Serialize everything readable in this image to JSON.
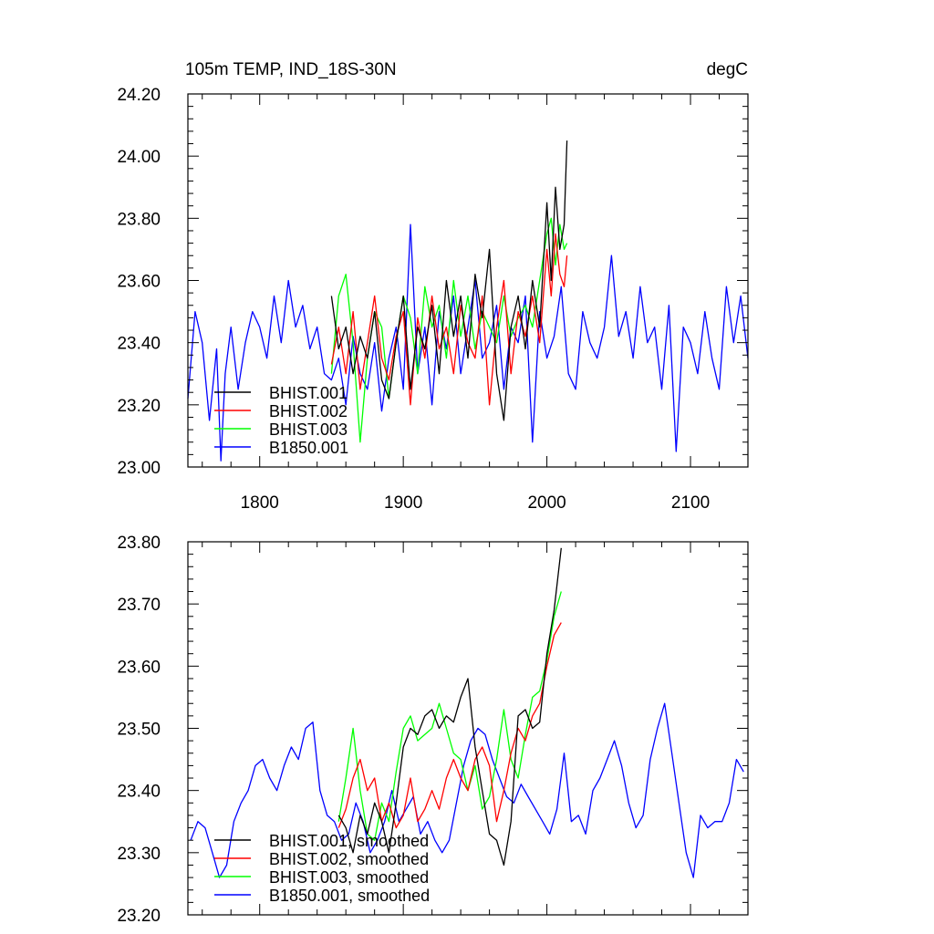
{
  "figure": {
    "title_left": "105m TEMP, IND_18S-30N",
    "title_right": "degC"
  },
  "chart_data": [
    {
      "type": "line",
      "panel": "raw",
      "xlim": [
        1750,
        2140
      ],
      "ylim": [
        23.0,
        24.2
      ],
      "xticks": [
        1800,
        1900,
        2000,
        2100
      ],
      "xtick_labels": [
        "1800",
        "1900",
        "2000",
        "2100"
      ],
      "yticks": [
        23.0,
        23.2,
        23.4,
        23.6,
        23.8,
        24.0,
        24.2
      ],
      "ytick_labels": [
        "23.00",
        "23.20",
        "23.40",
        "23.60",
        "23.80",
        "24.00",
        "24.20"
      ],
      "legend_position": "bottom-left",
      "series": [
        {
          "name": "BHIST.001",
          "color": "#000000",
          "x": [
            1850,
            1855,
            1860,
            1865,
            1870,
            1875,
            1880,
            1885,
            1890,
            1895,
            1900,
            1905,
            1910,
            1915,
            1920,
            1925,
            1930,
            1935,
            1940,
            1945,
            1950,
            1955,
            1960,
            1965,
            1970,
            1975,
            1980,
            1985,
            1990,
            1995,
            2000,
            2003,
            2006,
            2009,
            2012,
            2014
          ],
          "y": [
            23.55,
            23.38,
            23.45,
            23.3,
            23.42,
            23.35,
            23.5,
            23.28,
            23.22,
            23.4,
            23.55,
            23.25,
            23.45,
            23.38,
            23.52,
            23.3,
            23.6,
            23.42,
            23.55,
            23.35,
            23.62,
            23.48,
            23.7,
            23.3,
            23.15,
            23.45,
            23.55,
            23.38,
            23.6,
            23.45,
            23.85,
            23.6,
            23.9,
            23.7,
            23.78,
            24.05
          ]
        },
        {
          "name": "BHIST.002",
          "color": "#ff0000",
          "x": [
            1850,
            1855,
            1860,
            1865,
            1870,
            1875,
            1880,
            1885,
            1890,
            1895,
            1900,
            1905,
            1910,
            1915,
            1920,
            1925,
            1930,
            1935,
            1940,
            1945,
            1950,
            1955,
            1960,
            1965,
            1970,
            1975,
            1980,
            1985,
            1990,
            1995,
            2000,
            2003,
            2006,
            2009,
            2012,
            2014
          ],
          "y": [
            23.33,
            23.45,
            23.3,
            23.5,
            23.25,
            23.4,
            23.55,
            23.35,
            23.28,
            23.42,
            23.5,
            23.2,
            23.48,
            23.35,
            23.55,
            23.38,
            23.45,
            23.3,
            23.52,
            23.4,
            23.35,
            23.55,
            23.2,
            23.45,
            23.6,
            23.3,
            23.5,
            23.42,
            23.55,
            23.4,
            23.7,
            23.55,
            23.75,
            23.62,
            23.58,
            23.68
          ]
        },
        {
          "name": "BHIST.003",
          "color": "#00ff00",
          "x": [
            1850,
            1855,
            1860,
            1865,
            1870,
            1875,
            1880,
            1885,
            1890,
            1895,
            1900,
            1905,
            1910,
            1915,
            1920,
            1925,
            1930,
            1935,
            1940,
            1945,
            1950,
            1955,
            1960,
            1965,
            1970,
            1975,
            1980,
            1985,
            1990,
            1995,
            2000,
            2003,
            2006,
            2009,
            2012,
            2014
          ],
          "y": [
            23.3,
            23.55,
            23.62,
            23.4,
            23.08,
            23.35,
            23.5,
            23.45,
            23.22,
            23.4,
            23.55,
            23.48,
            23.3,
            23.58,
            23.45,
            23.52,
            23.35,
            23.6,
            23.42,
            23.55,
            23.38,
            23.5,
            23.45,
            23.4,
            23.55,
            23.42,
            23.48,
            23.52,
            23.45,
            23.6,
            23.75,
            23.8,
            23.65,
            23.78,
            23.7,
            23.72
          ]
        },
        {
          "name": "B1850.001",
          "color": "#0000ff",
          "x": [
            1750,
            1755,
            1760,
            1765,
            1770,
            1773,
            1776,
            1780,
            1785,
            1790,
            1795,
            1800,
            1805,
            1810,
            1815,
            1820,
            1825,
            1830,
            1835,
            1840,
            1845,
            1850,
            1855,
            1860,
            1865,
            1870,
            1875,
            1880,
            1885,
            1890,
            1895,
            1900,
            1905,
            1910,
            1915,
            1920,
            1925,
            1930,
            1935,
            1940,
            1945,
            1950,
            1955,
            1960,
            1965,
            1970,
            1975,
            1980,
            1985,
            1990,
            1995,
            2000,
            2005,
            2010,
            2015,
            2020,
            2025,
            2030,
            2035,
            2040,
            2045,
            2050,
            2055,
            2060,
            2065,
            2070,
            2075,
            2080,
            2085,
            2090,
            2095,
            2100,
            2105,
            2110,
            2115,
            2120,
            2125,
            2130,
            2135,
            2140
          ],
          "y": [
            23.22,
            23.5,
            23.4,
            23.15,
            23.38,
            23.02,
            23.3,
            23.45,
            23.25,
            23.4,
            23.5,
            23.45,
            23.35,
            23.55,
            23.4,
            23.6,
            23.45,
            23.52,
            23.38,
            23.45,
            23.3,
            23.28,
            23.35,
            23.2,
            23.42,
            23.3,
            23.25,
            23.4,
            23.18,
            23.35,
            23.45,
            23.25,
            23.78,
            23.3,
            23.45,
            23.2,
            23.5,
            23.38,
            23.55,
            23.3,
            23.45,
            23.6,
            23.35,
            23.4,
            23.52,
            23.25,
            23.45,
            23.4,
            23.55,
            23.08,
            23.5,
            23.35,
            23.42,
            23.58,
            23.3,
            23.25,
            23.5,
            23.4,
            23.35,
            23.45,
            23.68,
            23.42,
            23.5,
            23.35,
            23.58,
            23.4,
            23.45,
            23.25,
            23.52,
            23.05,
            23.45,
            23.4,
            23.3,
            23.5,
            23.35,
            23.25,
            23.58,
            23.4,
            23.55,
            23.35
          ]
        }
      ]
    },
    {
      "type": "line",
      "panel": "smoothed",
      "xlim": [
        1750,
        2140
      ],
      "ylim": [
        23.2,
        23.8
      ],
      "xticks": [
        1800,
        1900,
        2000,
        2100
      ],
      "yticks": [
        23.2,
        23.3,
        23.4,
        23.5,
        23.6,
        23.7,
        23.8
      ],
      "ytick_labels": [
        "23.20",
        "23.30",
        "23.40",
        "23.50",
        "23.60",
        "23.70",
        "23.80"
      ],
      "legend_position": "bottom-left",
      "series": [
        {
          "name": "BHIST.001, smoothed",
          "color": "#000000",
          "x": [
            1855,
            1860,
            1865,
            1870,
            1875,
            1880,
            1885,
            1890,
            1895,
            1900,
            1905,
            1910,
            1915,
            1920,
            1925,
            1930,
            1935,
            1940,
            1945,
            1950,
            1955,
            1960,
            1965,
            1970,
            1975,
            1980,
            1985,
            1990,
            1995,
            2000,
            2005,
            2010
          ],
          "y": [
            23.36,
            23.34,
            23.3,
            23.36,
            23.33,
            23.38,
            23.35,
            23.3,
            23.38,
            23.47,
            23.5,
            23.49,
            23.52,
            23.53,
            23.5,
            23.52,
            23.51,
            23.55,
            23.58,
            23.47,
            23.4,
            23.33,
            23.32,
            23.28,
            23.35,
            23.52,
            23.53,
            23.5,
            23.51,
            23.62,
            23.69,
            23.79
          ]
        },
        {
          "name": "BHIST.002, smoothed",
          "color": "#ff0000",
          "x": [
            1855,
            1860,
            1865,
            1870,
            1875,
            1880,
            1885,
            1890,
            1895,
            1900,
            1905,
            1910,
            1915,
            1920,
            1925,
            1930,
            1935,
            1940,
            1945,
            1950,
            1955,
            1960,
            1965,
            1970,
            1975,
            1980,
            1985,
            1990,
            1995,
            2000,
            2005,
            2010
          ],
          "y": [
            23.34,
            23.37,
            23.42,
            23.45,
            23.4,
            23.42,
            23.35,
            23.38,
            23.34,
            23.36,
            23.42,
            23.35,
            23.37,
            23.4,
            23.37,
            23.42,
            23.45,
            23.42,
            23.4,
            23.45,
            23.47,
            23.44,
            23.35,
            23.4,
            23.46,
            23.5,
            23.48,
            23.52,
            23.54,
            23.6,
            23.65,
            23.67
          ]
        },
        {
          "name": "BHIST.003, smoothed",
          "color": "#00ff00",
          "x": [
            1855,
            1860,
            1865,
            1870,
            1875,
            1880,
            1885,
            1890,
            1895,
            1900,
            1905,
            1910,
            1915,
            1920,
            1925,
            1930,
            1935,
            1940,
            1945,
            1950,
            1955,
            1960,
            1965,
            1970,
            1975,
            1980,
            1985,
            1990,
            1995,
            2000,
            2005,
            2010
          ],
          "y": [
            23.35,
            23.42,
            23.5,
            23.4,
            23.33,
            23.32,
            23.38,
            23.35,
            23.43,
            23.5,
            23.52,
            23.48,
            23.49,
            23.5,
            23.54,
            23.5,
            23.46,
            23.45,
            23.4,
            23.44,
            23.37,
            23.39,
            23.45,
            23.53,
            23.45,
            23.42,
            23.49,
            23.55,
            23.56,
            23.61,
            23.68,
            23.72
          ]
        },
        {
          "name": "B1850.001, smoothed",
          "color": "#0000ff",
          "x": [
            1752,
            1757,
            1762,
            1767,
            1772,
            1777,
            1782,
            1787,
            1792,
            1797,
            1802,
            1807,
            1812,
            1817,
            1822,
            1827,
            1832,
            1837,
            1842,
            1847,
            1852,
            1857,
            1862,
            1867,
            1872,
            1877,
            1882,
            1887,
            1892,
            1897,
            1902,
            1907,
            1912,
            1917,
            1922,
            1927,
            1932,
            1937,
            1942,
            1947,
            1952,
            1957,
            1962,
            1967,
            1972,
            1977,
            1982,
            1987,
            1992,
            1997,
            2002,
            2007,
            2012,
            2017,
            2022,
            2027,
            2032,
            2037,
            2042,
            2047,
            2052,
            2057,
            2062,
            2067,
            2072,
            2077,
            2082,
            2087,
            2092,
            2097,
            2102,
            2107,
            2112,
            2117,
            2122,
            2127,
            2132,
            2137
          ],
          "y": [
            23.32,
            23.35,
            23.34,
            23.3,
            23.26,
            23.28,
            23.35,
            23.38,
            23.4,
            23.44,
            23.45,
            23.42,
            23.4,
            23.44,
            23.47,
            23.45,
            23.5,
            23.51,
            23.4,
            23.36,
            23.35,
            23.32,
            23.33,
            23.38,
            23.35,
            23.3,
            23.32,
            23.35,
            23.4,
            23.35,
            23.37,
            23.39,
            23.33,
            23.35,
            23.32,
            23.3,
            23.32,
            23.38,
            23.44,
            23.48,
            23.5,
            23.49,
            23.45,
            23.42,
            23.39,
            23.38,
            23.41,
            23.39,
            23.37,
            23.35,
            23.33,
            23.37,
            23.46,
            23.35,
            23.36,
            23.33,
            23.4,
            23.42,
            23.45,
            23.48,
            23.44,
            23.38,
            23.34,
            23.36,
            23.45,
            23.5,
            23.54,
            23.46,
            23.38,
            23.3,
            23.26,
            23.36,
            23.34,
            23.35,
            23.35,
            23.38,
            23.45,
            23.43
          ]
        }
      ]
    }
  ]
}
